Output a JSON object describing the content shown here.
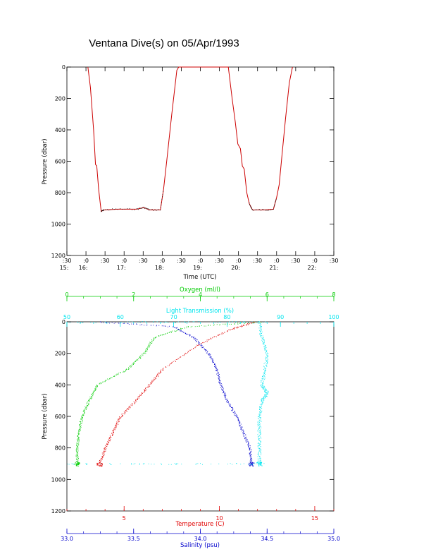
{
  "title": "Ventana Dive(s) on 05/Apr/1993",
  "colors": {
    "axis": "#000000",
    "pressure_trace": "#cc0000",
    "oxygen": "#00cc00",
    "light": "#00e5ee",
    "temperature": "#e00000",
    "salinity": "#0000cc"
  },
  "chart_data": [
    {
      "type": "line",
      "title": "Ventana Dive(s) on 05/Apr/1993",
      "xlabel": "Time (UTC)",
      "ylabel": "Pressure (dbar)",
      "x_units": "minutes after 15:00 UTC",
      "xlim": [
        30,
        450
      ],
      "ylim": [
        1200,
        0
      ],
      "x_ticks": [
        {
          "value": 30,
          "minute": ":30",
          "hour": "15:"
        },
        {
          "value": 60,
          "minute": ":0",
          "hour": "16:"
        },
        {
          "value": 90,
          "minute": ":30",
          "hour": ""
        },
        {
          "value": 120,
          "minute": ":0",
          "hour": "17:"
        },
        {
          "value": 150,
          "minute": ":30",
          "hour": ""
        },
        {
          "value": 180,
          "minute": ":0",
          "hour": "18:"
        },
        {
          "value": 210,
          "minute": ":30",
          "hour": ""
        },
        {
          "value": 240,
          "minute": ":0",
          "hour": "19:"
        },
        {
          "value": 270,
          "minute": ":30",
          "hour": ""
        },
        {
          "value": 300,
          "minute": ":0",
          "hour": "20:"
        },
        {
          "value": 330,
          "minute": ":30",
          "hour": ""
        },
        {
          "value": 360,
          "minute": ":0",
          "hour": "21:"
        },
        {
          "value": 390,
          "minute": ":30",
          "hour": ""
        },
        {
          "value": 420,
          "minute": ":0",
          "hour": "22:"
        },
        {
          "value": 450,
          "minute": ":30",
          "hour": ""
        }
      ],
      "y_ticks": [
        0,
        200,
        400,
        600,
        800,
        1000,
        1200
      ],
      "series": [
        {
          "name": "",
          "points": [
            [
              63,
              0
            ],
            [
              67,
              130
            ],
            [
              72,
              400
            ],
            [
              75,
              620
            ],
            [
              77,
              630
            ],
            [
              80,
              780
            ],
            [
              84,
              920
            ],
            [
              88,
              910
            ],
            [
              110,
              905
            ],
            [
              140,
              905
            ],
            [
              151,
              895
            ],
            [
              160,
              910
            ],
            [
              177,
              910
            ],
            [
              182,
              780
            ],
            [
              187,
              600
            ],
            [
              195,
              300
            ],
            [
              203,
              20
            ],
            [
              206,
              0
            ],
            [
              211,
              0
            ],
            [
              240,
              0
            ],
            [
              284,
              0
            ],
            [
              290,
              200
            ],
            [
              295,
              350
            ],
            [
              299,
              490
            ],
            [
              303,
              520
            ],
            [
              306,
              630
            ],
            [
              309,
              650
            ],
            [
              313,
              800
            ],
            [
              317,
              870
            ],
            [
              322,
              910
            ],
            [
              340,
              910
            ],
            [
              355,
              905
            ],
            [
              360,
              830
            ],
            [
              364,
              750
            ],
            [
              368,
              580
            ],
            [
              374,
              330
            ],
            [
              380,
              100
            ],
            [
              385,
              0
            ]
          ]
        }
      ]
    },
    {
      "type": "scatter",
      "ylabel": "Pressure (dbar)",
      "ylim": [
        1200,
        0
      ],
      "y_ticks": [
        0,
        200,
        400,
        600,
        800,
        1000,
        1200
      ],
      "axes": {
        "oxygen": {
          "label": "Oxygen (ml/l)",
          "range": [
            0,
            8
          ],
          "ticks": [
            0,
            2,
            4,
            6,
            8
          ]
        },
        "light_transmission": {
          "label": "Light Transmission (%)",
          "range": [
            50,
            100
          ],
          "ticks": [
            50,
            60,
            70,
            80,
            90,
            100
          ]
        },
        "temperature": {
          "label": "Temperature (C)",
          "range": [
            2,
            16
          ],
          "ticks": [
            5,
            10,
            15
          ]
        },
        "salinity": {
          "label": "Salinity (psu)",
          "range": [
            33.0,
            35.0
          ],
          "ticks": [
            "33.0",
            "33.5",
            "34.0",
            "34.5",
            "35.0"
          ]
        }
      },
      "series": [
        {
          "name": "Oxygen",
          "axis": "oxygen",
          "profile": [
            [
              0,
              5.8
            ],
            [
              30,
              3.6
            ],
            [
              100,
              2.6
            ],
            [
              200,
              2.3
            ],
            [
              300,
              1.8
            ],
            [
              400,
              0.9
            ],
            [
              500,
              0.65
            ],
            [
              600,
              0.45
            ],
            [
              700,
              0.35
            ],
            [
              800,
              0.3
            ],
            [
              900,
              0.3
            ]
          ]
        },
        {
          "name": "Light Transmission",
          "axis": "light_transmission",
          "profile": [
            [
              0,
              86
            ],
            [
              100,
              86.5
            ],
            [
              200,
              87.5
            ],
            [
              300,
              87
            ],
            [
              400,
              86.5
            ],
            [
              450,
              87.5
            ],
            [
              500,
              86.5
            ],
            [
              600,
              86
            ],
            [
              700,
              86
            ],
            [
              800,
              86
            ],
            [
              900,
              86
            ]
          ]
        },
        {
          "name": "Temperature",
          "axis": "temperature",
          "profile": [
            [
              0,
              11.8
            ],
            [
              50,
              10.5
            ],
            [
              150,
              8.8
            ],
            [
              300,
              7.0
            ],
            [
              400,
              6.3
            ],
            [
              500,
              5.6
            ],
            [
              600,
              4.8
            ],
            [
              700,
              4.4
            ],
            [
              800,
              4.0
            ],
            [
              900,
              3.7
            ]
          ]
        },
        {
          "name": "Salinity",
          "axis": "salinity",
          "profile": [
            [
              0,
              33.25
            ],
            [
              30,
              33.8
            ],
            [
              100,
              33.95
            ],
            [
              200,
              34.06
            ],
            [
              300,
              34.12
            ],
            [
              400,
              34.15
            ],
            [
              500,
              34.2
            ],
            [
              600,
              34.27
            ],
            [
              700,
              34.32
            ],
            [
              800,
              34.37
            ],
            [
              900,
              34.38
            ]
          ]
        }
      ]
    }
  ]
}
